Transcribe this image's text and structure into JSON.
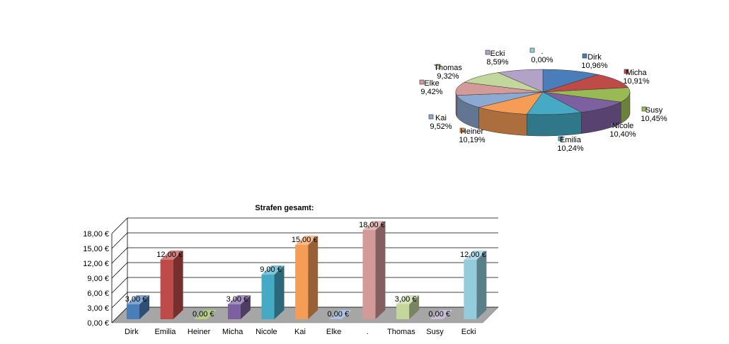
{
  "chart_data": [
    {
      "type": "pie",
      "title": "",
      "legend": "labels-around-chart",
      "slices": [
        {
          "label": "Dirk",
          "percent": 10.96,
          "display": "10,96%",
          "color": "#4a7ebb"
        },
        {
          "label": "Micha",
          "percent": 10.91,
          "display": "10,91%",
          "color": "#be4b48"
        },
        {
          "label": "Susy",
          "percent": 10.45,
          "display": "10,45%",
          "color": "#98b954"
        },
        {
          "label": "Nicole",
          "percent": 10.4,
          "display": "10,40%",
          "color": "#7d60a0"
        },
        {
          "label": "Emilia",
          "percent": 10.24,
          "display": "10,24%",
          "color": "#46aac5"
        },
        {
          "label": "Heiner",
          "percent": 10.19,
          "display": "10,19%",
          "color": "#f59d56"
        },
        {
          "label": "Kai",
          "percent": 9.52,
          "display": "9,52%",
          "color": "#8ca9d2"
        },
        {
          "label": "Elke",
          "percent": 9.42,
          "display": "9,42%",
          "color": "#d49a99"
        },
        {
          "label": "Thomas",
          "percent": 9.32,
          "display": "9,32%",
          "color": "#c3d69b"
        },
        {
          "label": "Ecki",
          "percent": 8.59,
          "display": "8,59%",
          "color": "#b2a2c7"
        },
        {
          "label": ".",
          "percent": 0.0,
          "display": "0,00%",
          "color": "#93cddd"
        }
      ]
    },
    {
      "type": "bar",
      "title": "Strafen gesamt:",
      "xlabel": "",
      "ylabel": "",
      "ylim": [
        0,
        18
      ],
      "yticks": [
        "0,00 €",
        "3,00 €",
        "6,00 €",
        "9,00 €",
        "12,00 €",
        "15,00 €",
        "18,00 €"
      ],
      "grid": true,
      "categories": [
        "Dirk",
        "Emilia",
        "Heiner",
        "Micha",
        "Nicole",
        "Kai",
        "Elke",
        ".",
        "Thomas",
        "Susy",
        "Ecki"
      ],
      "values": [
        3,
        12,
        0,
        3,
        9,
        15,
        0,
        18,
        3,
        0,
        12
      ],
      "value_labels": [
        "3,00 €",
        "12,00 €",
        "0,00 €",
        "3,00 €",
        "9,00 €",
        "15,00 €",
        "0,00 €",
        "18,00 €",
        "3,00 €",
        "0,00 €",
        "12,00 €"
      ],
      "colors": [
        "#4a7ebb",
        "#be4b48",
        "#98b954",
        "#7d60a0",
        "#46aac5",
        "#f59d56",
        "#8ca9d2",
        "#d49a99",
        "#c3d69b",
        "#b2a2c7",
        "#93cddd"
      ]
    }
  ]
}
